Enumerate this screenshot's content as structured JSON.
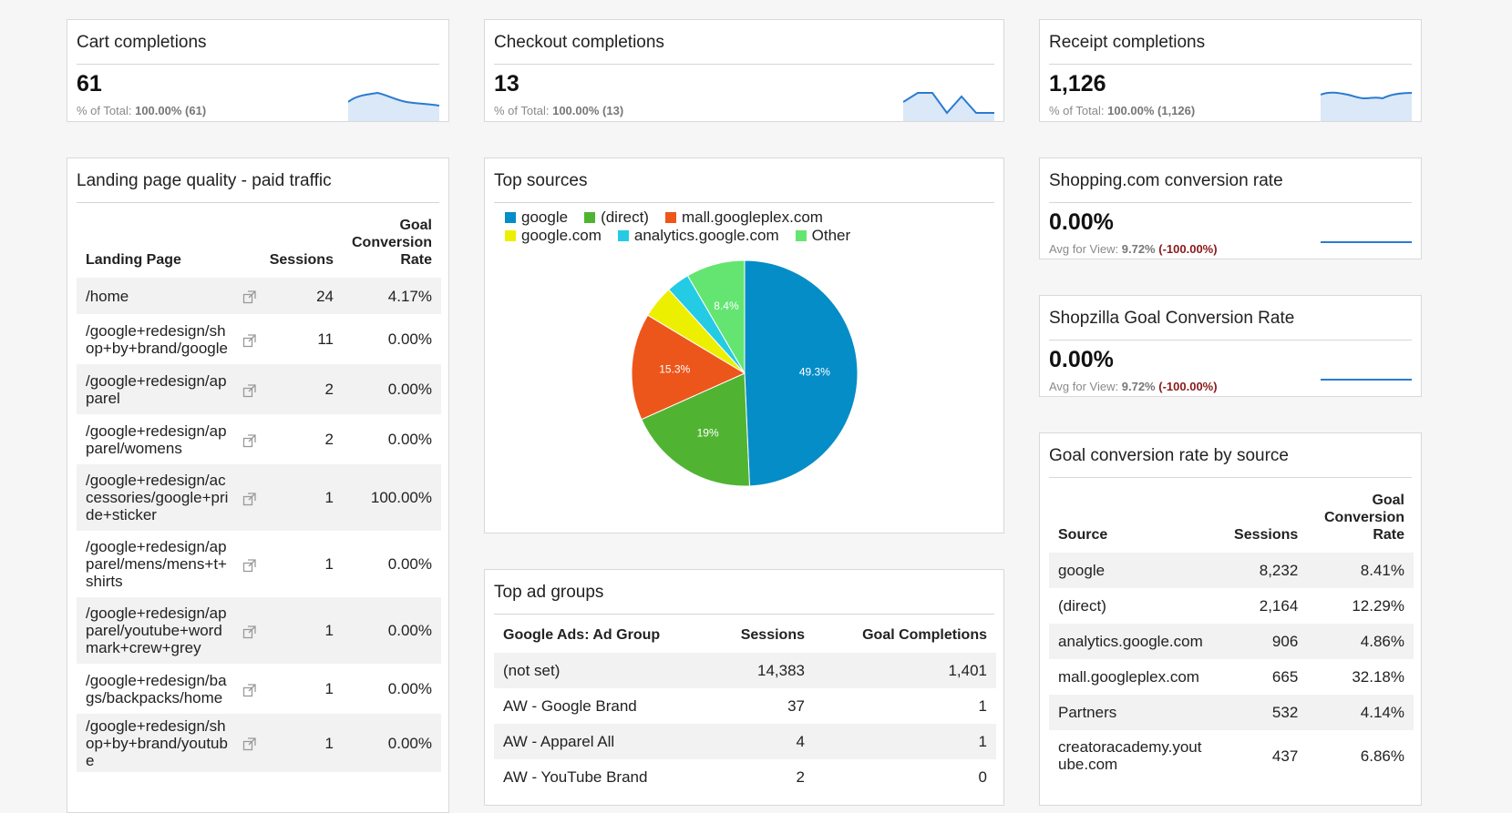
{
  "cards": {
    "cart": {
      "title": "Cart completions",
      "value": "61",
      "sub_label": "% of Total:",
      "sub_value": "100.00% (61)"
    },
    "checkout": {
      "title": "Checkout completions",
      "value": "13",
      "sub_label": "% of Total:",
      "sub_value": "100.00% (13)"
    },
    "receipt": {
      "title": "Receipt completions",
      "value": "1,126",
      "sub_label": "% of Total:",
      "sub_value": "100.00% (1,126)"
    },
    "shopping": {
      "title": "Shopping.com conversion rate",
      "value": "0.00%",
      "sub_label": "Avg for View:",
      "sub_value": "9.72%",
      "sub_delta": "(-100.00%)"
    },
    "shopzilla": {
      "title": "Shopzilla Goal Conversion Rate",
      "value": "0.00%",
      "sub_label": "Avg for View:",
      "sub_value": "9.72%",
      "sub_delta": "(-100.00%)"
    }
  },
  "landing": {
    "title": "Landing page quality - paid traffic",
    "headers": {
      "page": "Landing Page",
      "sessions": "Sessions",
      "gcr_1": "Goal",
      "gcr_2": "Conversion",
      "gcr_3": "Rate"
    },
    "rows": [
      {
        "lines": [
          "/home"
        ],
        "sessions": "24",
        "rate": "4.17%"
      },
      {
        "lines": [
          "/google+redesign/sh",
          "op+by+brand/google"
        ],
        "sessions": "11",
        "rate": "0.00%"
      },
      {
        "lines": [
          "/google+redesign/ap",
          "parel"
        ],
        "sessions": "2",
        "rate": "0.00%"
      },
      {
        "lines": [
          "/google+redesign/ap",
          "parel/womens"
        ],
        "sessions": "2",
        "rate": "0.00%"
      },
      {
        "lines": [
          "/google+redesign/ac",
          "cessories/google+pri",
          "de+sticker"
        ],
        "sessions": "1",
        "rate": "100.00%"
      },
      {
        "lines": [
          "/google+redesign/ap",
          "parel/mens/mens+t+",
          "shirts"
        ],
        "sessions": "1",
        "rate": "0.00%"
      },
      {
        "lines": [
          "/google+redesign/ap",
          "parel/youtube+word",
          "mark+crew+grey"
        ],
        "sessions": "1",
        "rate": "0.00%"
      },
      {
        "lines": [
          "/google+redesign/ba",
          "gs/backpacks/home"
        ],
        "sessions": "1",
        "rate": "0.00%"
      },
      {
        "lines": [
          "/google+redesign/sh",
          "op+by+brand/youtub",
          "e"
        ],
        "sessions": "1",
        "rate": "0.00%"
      }
    ]
  },
  "top_sources": {
    "title": "Top sources",
    "legend": [
      {
        "name": "google",
        "color": "#058dc7"
      },
      {
        "name": "(direct)",
        "color": "#50b432"
      },
      {
        "name": "mall.googleplex.com",
        "color": "#ed561b"
      },
      {
        "name": "google.com",
        "color": "#edef00"
      },
      {
        "name": "analytics.google.com",
        "color": "#24cbe5"
      },
      {
        "name": "Other",
        "color": "#64e572"
      }
    ]
  },
  "chart_data": {
    "type": "pie",
    "categories": [
      "google",
      "(direct)",
      "mall.googleplex.com",
      "google.com",
      "analytics.google.com",
      "Other"
    ],
    "values": [
      49.3,
      19,
      15.3,
      4.7,
      3.3,
      8.4
    ],
    "labels": [
      "49.3%",
      "19%",
      "15.3%",
      "",
      "",
      "8.4%"
    ],
    "colors": [
      "#058dc7",
      "#50b432",
      "#ed561b",
      "#edef00",
      "#24cbe5",
      "#64e572"
    ],
    "legend_position": "top-left"
  },
  "ad_groups": {
    "title": "Top ad groups",
    "headers": {
      "group": "Google Ads: Ad Group",
      "sessions": "Sessions",
      "completions": "Goal Completions"
    },
    "rows": [
      {
        "group": "(not set)",
        "sessions": "14,383",
        "completions": "1,401"
      },
      {
        "group": "AW - Google Brand",
        "sessions": "37",
        "completions": "1"
      },
      {
        "group": "AW - Apparel All",
        "sessions": "4",
        "completions": "1"
      },
      {
        "group": "AW - YouTube Brand",
        "sessions": "2",
        "completions": "0"
      }
    ]
  },
  "gcr_source": {
    "title": "Goal conversion rate by source",
    "headers": {
      "source": "Source",
      "sessions": "Sessions",
      "gcr_1": "Goal",
      "gcr_2": "Conversion",
      "gcr_3": "Rate"
    },
    "rows": [
      {
        "lines": [
          "google"
        ],
        "sessions": "8,232",
        "rate": "8.41%"
      },
      {
        "lines": [
          "(direct)"
        ],
        "sessions": "2,164",
        "rate": "12.29%"
      },
      {
        "lines": [
          "analytics.google.com"
        ],
        "sessions": "906",
        "rate": "4.86%"
      },
      {
        "lines": [
          "mall.googleplex.com"
        ],
        "sessions": "665",
        "rate": "32.18%"
      },
      {
        "lines": [
          "Partners"
        ],
        "sessions": "532",
        "rate": "4.14%"
      },
      {
        "lines": [
          "creatoracademy.yout",
          "ube.com"
        ],
        "sessions": "437",
        "rate": "6.86%"
      }
    ]
  },
  "colors": {
    "spark_line": "#2a7bd1",
    "spark_fill": "#dbe8f7",
    "negative": "#8b1a1a"
  }
}
